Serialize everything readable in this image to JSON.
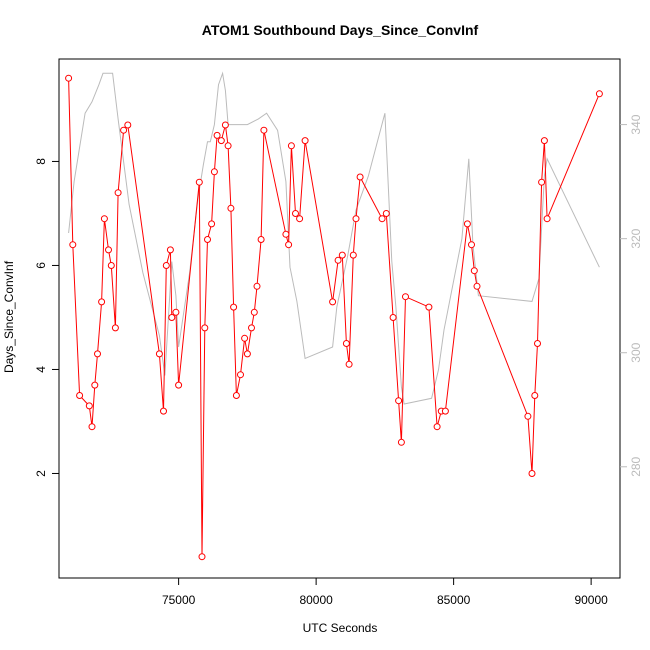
{
  "chart_data": {
    "type": "line",
    "title": "ATOM1 Southbound Days_Since_ConvInf",
    "xlabel": "UTC Seconds",
    "ylabel": "Days_Since_ConvInf",
    "xlim": [
      70650,
      91050
    ],
    "ylim": [
      -0.01,
      9.97
    ],
    "y2lim": [
      260.5,
      351.5
    ],
    "x_ticks": [
      75000,
      80000,
      85000,
      90000
    ],
    "y_ticks": [
      2,
      4,
      6,
      8
    ],
    "y2_ticks": [
      280,
      300,
      320,
      340
    ],
    "colors": {
      "primary": "#ff0000",
      "secondary": "#bbbbbb"
    },
    "series": [
      {
        "axis": "left",
        "points": [
          [
            71000,
            9.6
          ],
          [
            71150,
            6.4
          ],
          [
            71400,
            3.5
          ],
          [
            71750,
            3.3
          ],
          [
            71850,
            2.9
          ],
          [
            71950,
            3.7
          ],
          [
            72050,
            4.3
          ],
          [
            72200,
            5.3
          ],
          [
            72300,
            6.9
          ],
          [
            72450,
            6.3
          ],
          [
            72550,
            6.0
          ],
          [
            72700,
            4.8
          ],
          [
            72800,
            7.4
          ],
          [
            73000,
            8.6
          ],
          [
            73150,
            8.7
          ],
          [
            74300,
            4.3
          ],
          [
            74450,
            3.2
          ],
          [
            74550,
            6.0
          ],
          [
            74700,
            6.3
          ],
          [
            74750,
            5.0
          ],
          [
            74900,
            5.1
          ],
          [
            75000,
            3.7
          ],
          [
            75750,
            7.6
          ],
          [
            75850,
            0.4
          ],
          [
            75950,
            4.8
          ],
          [
            76050,
            6.5
          ],
          [
            76200,
            6.8
          ],
          [
            76300,
            7.8
          ],
          [
            76400,
            8.5
          ],
          [
            76550,
            8.4
          ],
          [
            76700,
            8.7
          ],
          [
            76800,
            8.3
          ],
          [
            76900,
            7.1
          ],
          [
            77000,
            5.2
          ],
          [
            77100,
            3.5
          ],
          [
            77250,
            3.9
          ],
          [
            77400,
            4.6
          ],
          [
            77500,
            4.3
          ],
          [
            77650,
            4.8
          ],
          [
            77750,
            5.1
          ],
          [
            77850,
            5.6
          ],
          [
            78000,
            6.5
          ],
          [
            78100,
            8.6
          ],
          [
            78900,
            6.6
          ],
          [
            79000,
            6.4
          ],
          [
            79100,
            8.3
          ],
          [
            79250,
            7.0
          ],
          [
            79400,
            6.9
          ],
          [
            79600,
            8.4
          ],
          [
            80600,
            5.3
          ],
          [
            80800,
            6.1
          ],
          [
            80950,
            6.2
          ],
          [
            81100,
            4.5
          ],
          [
            81200,
            4.1
          ],
          [
            81350,
            6.2
          ],
          [
            81450,
            6.9
          ],
          [
            81600,
            7.7
          ],
          [
            82400,
            6.9
          ],
          [
            82550,
            7.0
          ],
          [
            82800,
            5.0
          ],
          [
            83000,
            3.4
          ],
          [
            83100,
            2.6
          ],
          [
            83250,
            5.4
          ],
          [
            84100,
            5.2
          ],
          [
            84400,
            2.9
          ],
          [
            84550,
            3.2
          ],
          [
            84700,
            3.2
          ],
          [
            85500,
            6.8
          ],
          [
            85650,
            6.4
          ],
          [
            85750,
            5.9
          ],
          [
            85850,
            5.6
          ],
          [
            87700,
            3.1
          ],
          [
            87850,
            2.0
          ],
          [
            87950,
            3.5
          ],
          [
            88050,
            4.5
          ],
          [
            88200,
            7.6
          ],
          [
            88300,
            8.4
          ],
          [
            88400,
            6.9
          ],
          [
            90300,
            9.3
          ]
        ]
      },
      {
        "axis": "right",
        "points": [
          [
            71000,
            321
          ],
          [
            71200,
            330
          ],
          [
            71600,
            342
          ],
          [
            71850,
            344
          ],
          [
            72100,
            347
          ],
          [
            72250,
            349
          ],
          [
            72400,
            349
          ],
          [
            72600,
            349
          ],
          [
            72800,
            341
          ],
          [
            73200,
            326
          ],
          [
            73700,
            314
          ],
          [
            74300,
            303
          ],
          [
            74500,
            296
          ],
          [
            74750,
            316
          ],
          [
            74900,
            310
          ],
          [
            75000,
            301
          ],
          [
            75400,
            314
          ],
          [
            75700,
            327
          ],
          [
            75900,
            333
          ],
          [
            76050,
            337
          ],
          [
            76150,
            337
          ],
          [
            76300,
            340
          ],
          [
            76450,
            347
          ],
          [
            76600,
            349
          ],
          [
            76700,
            346
          ],
          [
            76800,
            340
          ],
          [
            77100,
            340
          ],
          [
            77500,
            340
          ],
          [
            77900,
            341
          ],
          [
            78200,
            342
          ],
          [
            78600,
            339
          ],
          [
            78900,
            330
          ],
          [
            79050,
            315
          ],
          [
            79300,
            309
          ],
          [
            79600,
            299
          ],
          [
            80600,
            301
          ],
          [
            80750,
            308
          ],
          [
            81150,
            317
          ],
          [
            81450,
            325
          ],
          [
            81900,
            331
          ],
          [
            82500,
            342
          ],
          [
            82750,
            316
          ],
          [
            82900,
            308
          ],
          [
            83100,
            294
          ],
          [
            83200,
            291
          ],
          [
            84200,
            292
          ],
          [
            84450,
            297
          ],
          [
            84650,
            304
          ],
          [
            85300,
            320
          ],
          [
            85550,
            334
          ],
          [
            85700,
            319
          ],
          [
            85900,
            310
          ],
          [
            87850,
            309
          ],
          [
            88100,
            313
          ],
          [
            88300,
            331
          ],
          [
            88400,
            334
          ],
          [
            90300,
            315
          ]
        ]
      }
    ]
  }
}
